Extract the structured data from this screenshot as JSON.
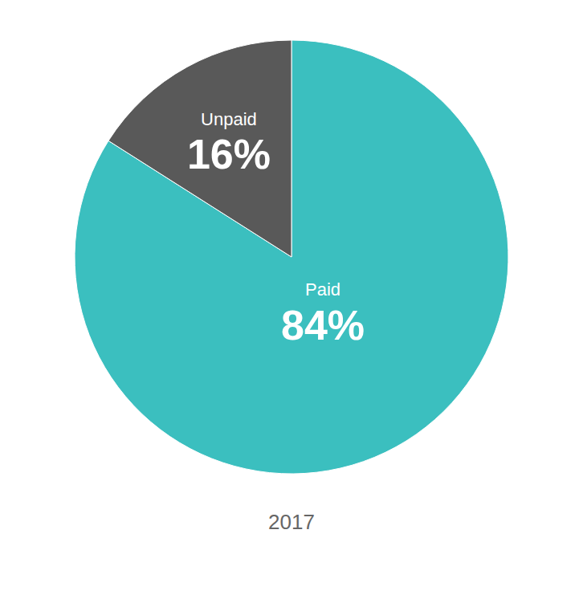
{
  "chart_data": {
    "type": "pie",
    "categories": [
      "Paid",
      "Unpaid"
    ],
    "values": [
      84,
      16
    ],
    "value_labels": [
      "84%",
      "16%"
    ],
    "colors": [
      "#3bbfbf",
      "#595959"
    ],
    "data_labels": true,
    "annotations": [
      "2017"
    ]
  }
}
